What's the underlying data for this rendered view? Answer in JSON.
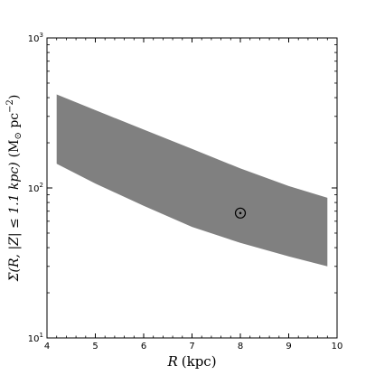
{
  "chart_data": {
    "type": "area",
    "xlabel_var": "R",
    "xlabel_unit": "(kpc)",
    "ylabel_var": "Σ(R, |Z| ≤ 1.1 kpc)",
    "ylabel_unit": "(M",
    "ylabel_unit_sub": "⊙",
    "ylabel_unit_rest": " pc",
    "ylabel_unit_sup": "−2",
    "ylabel_unit_close": ")",
    "xlim": [
      4,
      10
    ],
    "ylim": [
      10,
      1000
    ],
    "yscale": "log",
    "x_ticks": [
      4,
      5,
      6,
      7,
      8,
      9,
      10
    ],
    "x_tick_labels": [
      "4",
      "5",
      "6",
      "7",
      "8",
      "9",
      "10"
    ],
    "y_tick_values": [
      10,
      100,
      1000
    ],
    "y_tick_labels": [
      {
        "base": "10",
        "exp": "1"
      },
      {
        "base": "10",
        "exp": "2"
      },
      {
        "base": "10",
        "exp": "3"
      }
    ],
    "band": {
      "x": [
        4.2,
        5.0,
        6.0,
        7.0,
        8.0,
        9.0,
        9.8
      ],
      "upper": [
        420,
        330,
        245,
        182,
        135,
        103,
        86
      ],
      "lower": [
        145,
        107,
        76,
        55,
        43,
        35,
        30
      ],
      "color": "#808080"
    },
    "marker": {
      "symbol": "sun",
      "x": 8.0,
      "y": 68
    },
    "grid": false
  }
}
